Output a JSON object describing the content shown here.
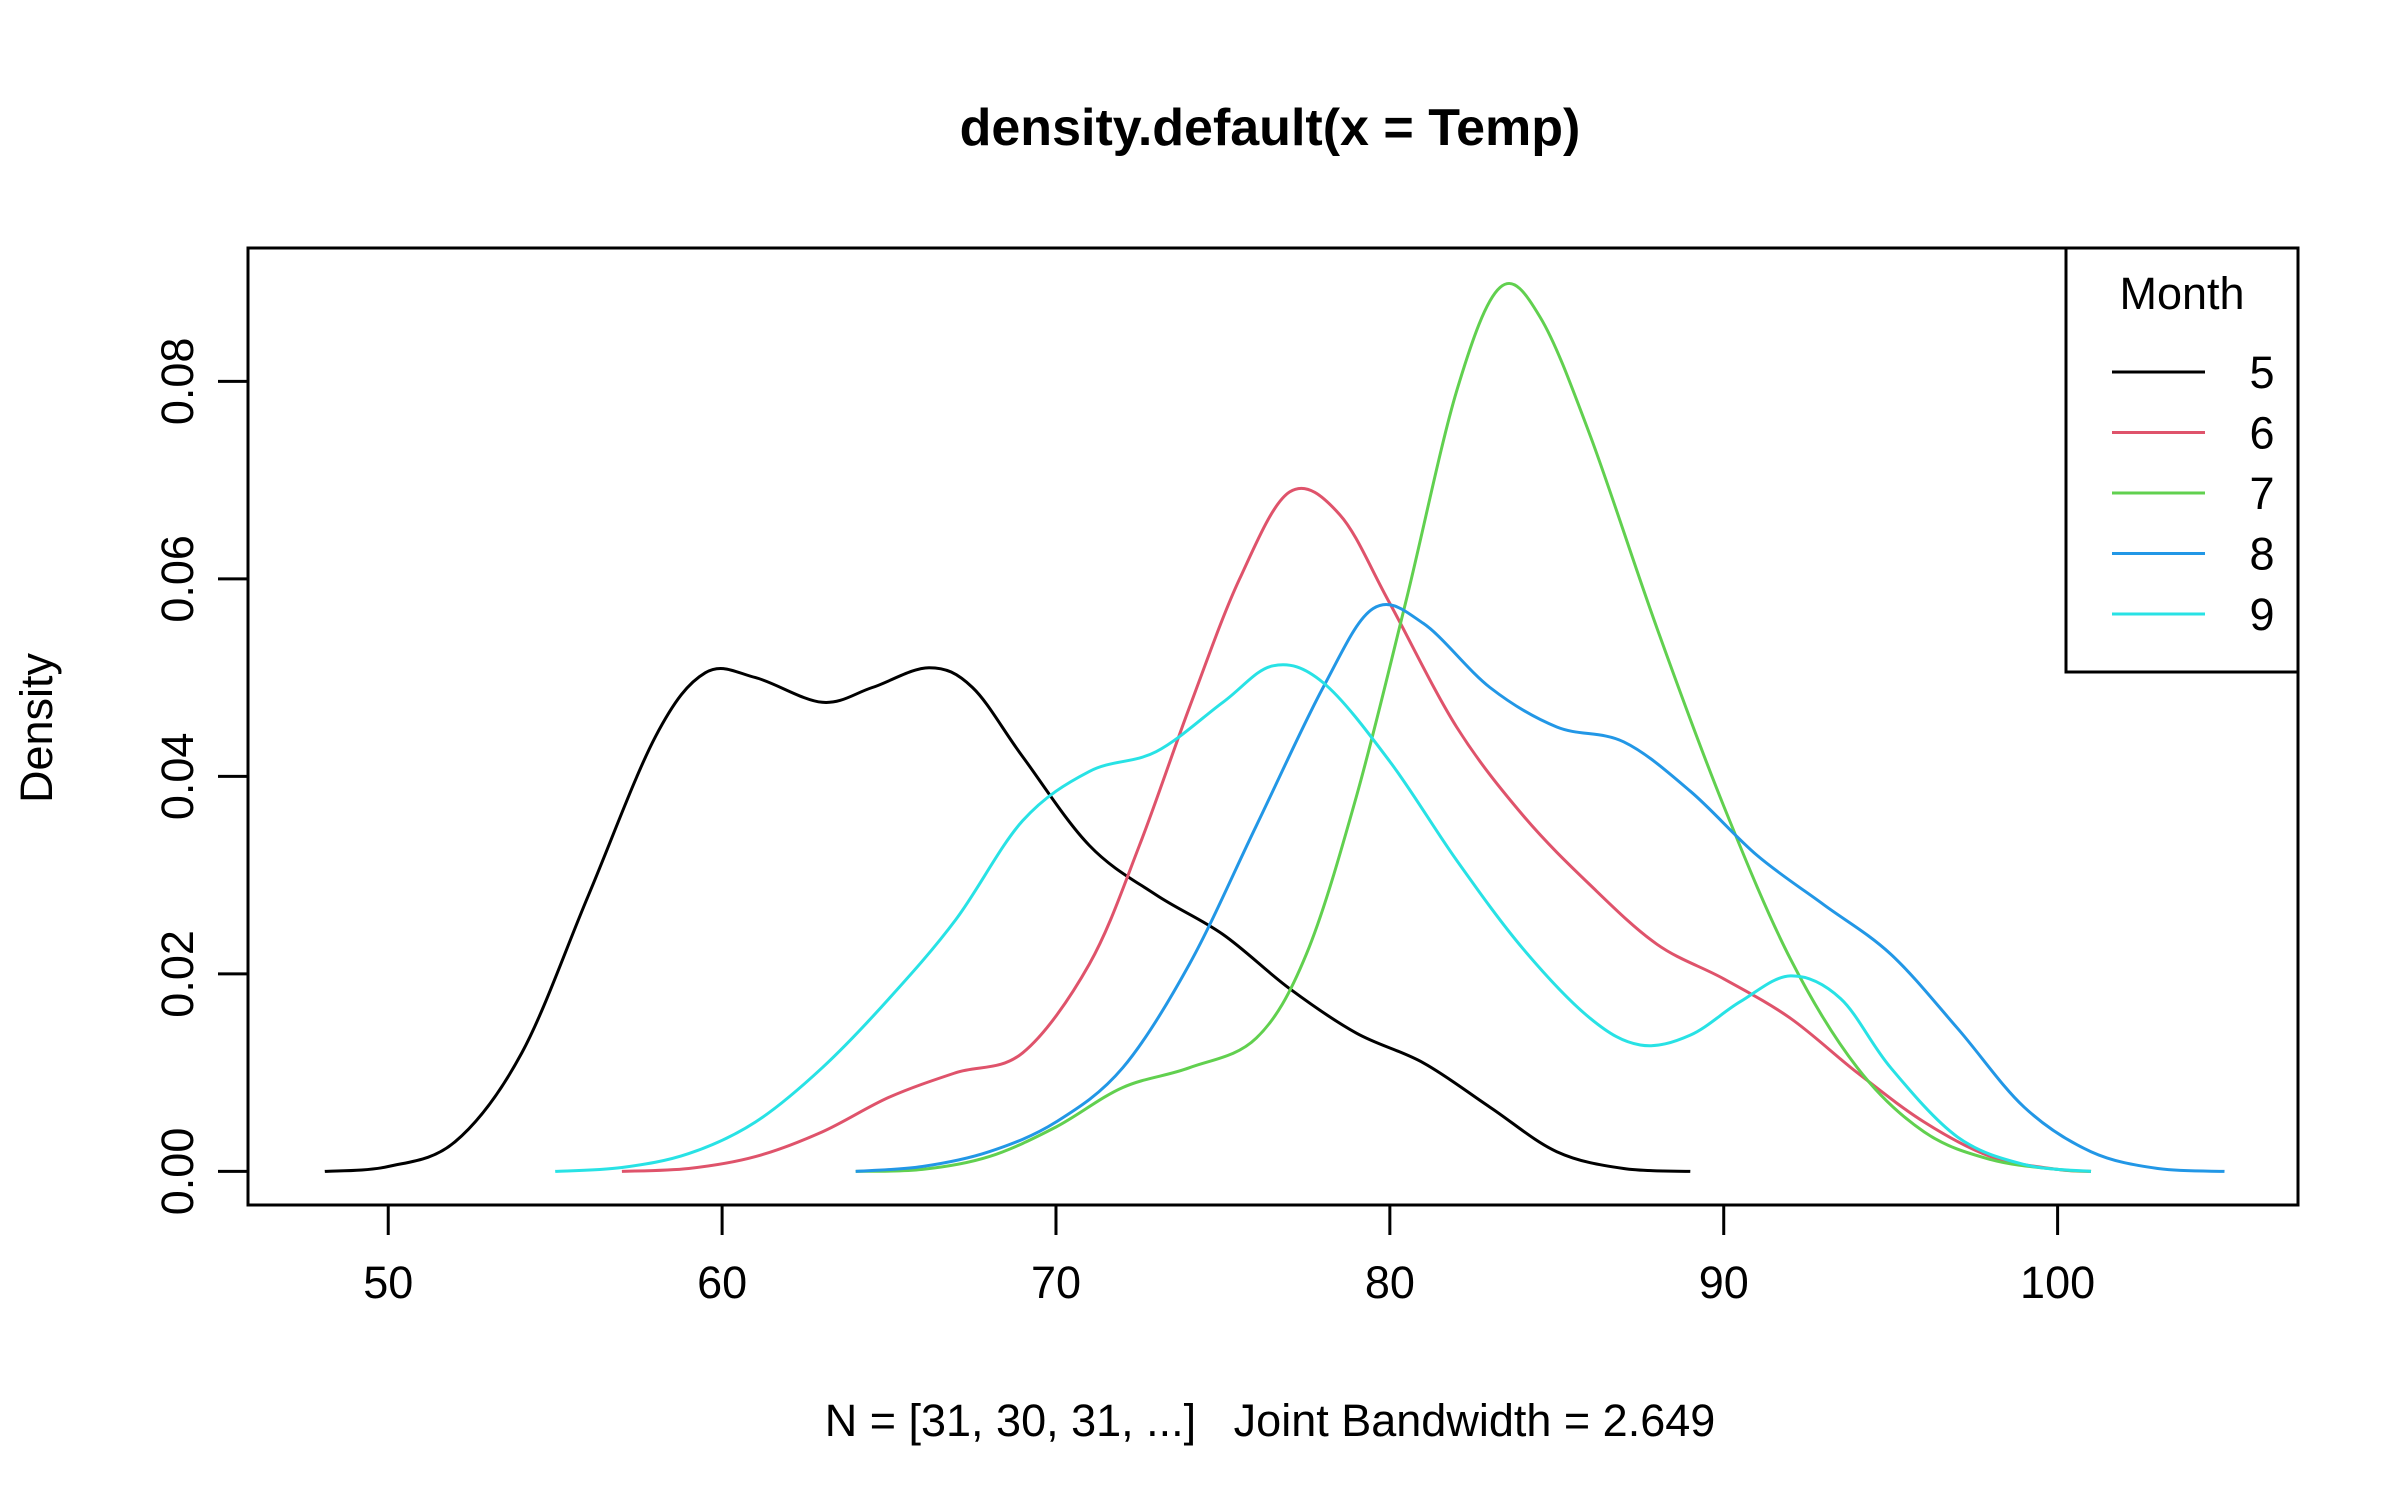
{
  "chart_data": {
    "type": "line",
    "title": "density.default(x = Temp)",
    "xlabel": "N = [31, 30, 31, ...]   Joint Bandwidth = 2.649",
    "ylabel": "Density",
    "xlim": [
      45.8,
      107.2
    ],
    "ylim": [
      -0.0034,
      0.0935
    ],
    "x_ticks": [
      50,
      60,
      70,
      80,
      90,
      100
    ],
    "x_tick_labels": [
      "50",
      "60",
      "70",
      "80",
      "90",
      "100"
    ],
    "y_ticks": [
      0.0,
      0.02,
      0.04,
      0.06,
      0.08
    ],
    "y_tick_labels": [
      "0.00",
      "0.02",
      "0.04",
      "0.06",
      "0.08"
    ],
    "grid": false,
    "legend": {
      "title": "Month",
      "position": "top-right",
      "entries": [
        "5",
        "6",
        "7",
        "8",
        "9"
      ]
    },
    "series": [
      {
        "name": "5",
        "color": "#000000",
        "points": [
          [
            48.1,
            0.0
          ],
          [
            50,
            0.0005
          ],
          [
            52,
            0.003
          ],
          [
            54,
            0.012
          ],
          [
            56,
            0.028
          ],
          [
            58,
            0.044
          ],
          [
            59.5,
            0.0505
          ],
          [
            61,
            0.05
          ],
          [
            63,
            0.0475
          ],
          [
            64.5,
            0.049
          ],
          [
            66.2,
            0.051
          ],
          [
            67.5,
            0.049
          ],
          [
            69,
            0.042
          ],
          [
            71,
            0.033
          ],
          [
            73,
            0.028
          ],
          [
            75,
            0.024
          ],
          [
            77,
            0.0185
          ],
          [
            79,
            0.014
          ],
          [
            81,
            0.011
          ],
          [
            83,
            0.0065
          ],
          [
            85,
            0.002
          ],
          [
            87,
            0.0003
          ],
          [
            89,
            0.0
          ]
        ]
      },
      {
        "name": "6",
        "color": "#DF536B",
        "points": [
          [
            57,
            0.0
          ],
          [
            59,
            0.0003
          ],
          [
            61,
            0.0015
          ],
          [
            63,
            0.004
          ],
          [
            65,
            0.0075
          ],
          [
            67,
            0.01
          ],
          [
            69,
            0.012
          ],
          [
            71,
            0.021
          ],
          [
            72.5,
            0.033
          ],
          [
            74,
            0.047
          ],
          [
            75.5,
            0.06
          ],
          [
            77,
            0.0688
          ],
          [
            78.5,
            0.0665
          ],
          [
            80,
            0.0575
          ],
          [
            82,
            0.045
          ],
          [
            84,
            0.036
          ],
          [
            86,
            0.029
          ],
          [
            88,
            0.023
          ],
          [
            90,
            0.0195
          ],
          [
            92,
            0.0155
          ],
          [
            94,
            0.01
          ],
          [
            96,
            0.005
          ],
          [
            98,
            0.0015
          ],
          [
            100,
            0.0002
          ],
          [
            101,
            0.0
          ]
        ]
      },
      {
        "name": "7",
        "color": "#61D04F",
        "points": [
          [
            64,
            0.0
          ],
          [
            66,
            0.0002
          ],
          [
            68,
            0.0015
          ],
          [
            70,
            0.0045
          ],
          [
            72,
            0.0085
          ],
          [
            74,
            0.0105
          ],
          [
            76,
            0.0135
          ],
          [
            77.5,
            0.022
          ],
          [
            79,
            0.038
          ],
          [
            80.5,
            0.058
          ],
          [
            82,
            0.079
          ],
          [
            83.3,
            0.0895
          ],
          [
            84.5,
            0.0865
          ],
          [
            86,
            0.0745
          ],
          [
            88,
            0.055
          ],
          [
            90,
            0.037
          ],
          [
            92,
            0.0215
          ],
          [
            94,
            0.0105
          ],
          [
            96,
            0.004
          ],
          [
            98,
            0.0012
          ],
          [
            100,
            0.0002
          ],
          [
            101,
            0.0
          ]
        ]
      },
      {
        "name": "8",
        "color": "#2297E6",
        "points": [
          [
            64,
            0.0
          ],
          [
            66,
            0.0005
          ],
          [
            68,
            0.002
          ],
          [
            70,
            0.005
          ],
          [
            72,
            0.0105
          ],
          [
            74,
            0.021
          ],
          [
            76,
            0.035
          ],
          [
            78,
            0.049
          ],
          [
            79.5,
            0.057
          ],
          [
            81,
            0.0555
          ],
          [
            83,
            0.049
          ],
          [
            85,
            0.045
          ],
          [
            87,
            0.0435
          ],
          [
            89,
            0.0385
          ],
          [
            91,
            0.032
          ],
          [
            93,
            0.027
          ],
          [
            95,
            0.022
          ],
          [
            97,
            0.0145
          ],
          [
            99,
            0.0065
          ],
          [
            101,
            0.002
          ],
          [
            103,
            0.0003
          ],
          [
            105,
            0.0
          ]
        ]
      },
      {
        "name": "9",
        "color": "#28E2E5",
        "points": [
          [
            55,
            0.0
          ],
          [
            57,
            0.0004
          ],
          [
            59,
            0.0018
          ],
          [
            61,
            0.005
          ],
          [
            63,
            0.0105
          ],
          [
            65,
            0.0175
          ],
          [
            67,
            0.0255
          ],
          [
            69,
            0.0355
          ],
          [
            71,
            0.0405
          ],
          [
            73,
            0.0425
          ],
          [
            75,
            0.0475
          ],
          [
            76.5,
            0.0512
          ],
          [
            78,
            0.0495
          ],
          [
            80,
            0.0415
          ],
          [
            82,
            0.0315
          ],
          [
            84,
            0.0225
          ],
          [
            86,
            0.0155
          ],
          [
            87.5,
            0.0128
          ],
          [
            89,
            0.0138
          ],
          [
            90.5,
            0.0172
          ],
          [
            92,
            0.0198
          ],
          [
            93.5,
            0.0175
          ],
          [
            95,
            0.0105
          ],
          [
            97,
            0.0035
          ],
          [
            99,
            0.0007
          ],
          [
            101,
            0.0
          ]
        ]
      }
    ]
  }
}
